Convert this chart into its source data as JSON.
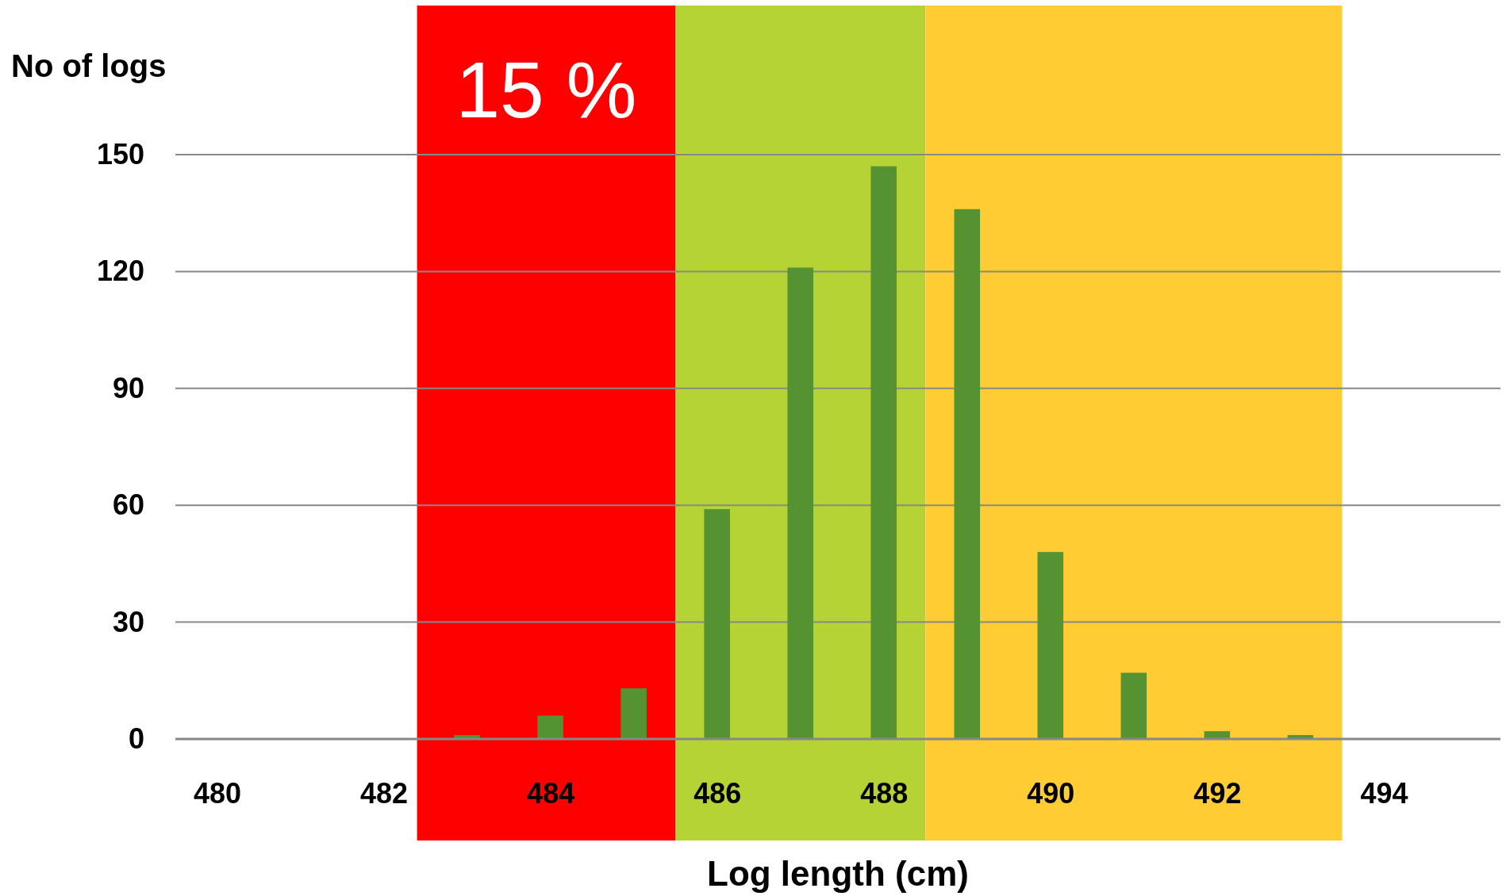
{
  "chart_data": {
    "type": "bar",
    "xlabel": "Log length (cm)",
    "ylabel": "No of logs",
    "x": [
      483,
      484,
      485,
      486,
      487,
      488,
      489,
      490,
      491,
      492,
      493
    ],
    "values": [
      1,
      6,
      13,
      59,
      121,
      147,
      136,
      48,
      17,
      2,
      1
    ],
    "color": "#559232",
    "xlim": [
      479.5,
      495.4
    ],
    "xticks": [
      480,
      482,
      484,
      486,
      488,
      490,
      492,
      494
    ],
    "ylim": [
      0,
      150
    ],
    "yticks": [
      0,
      30,
      60,
      90,
      120,
      150
    ],
    "grid": "y",
    "bands": [
      {
        "axis": "x",
        "from": 482.4,
        "to": 485.5,
        "label": "15 %",
        "color": "#ff0000"
      },
      {
        "axis": "x",
        "from": 485.5,
        "to": 488.5,
        "color": "#b5d334"
      },
      {
        "axis": "x",
        "from": 488.5,
        "to": 493.5,
        "color": "#ffcd33"
      }
    ]
  }
}
